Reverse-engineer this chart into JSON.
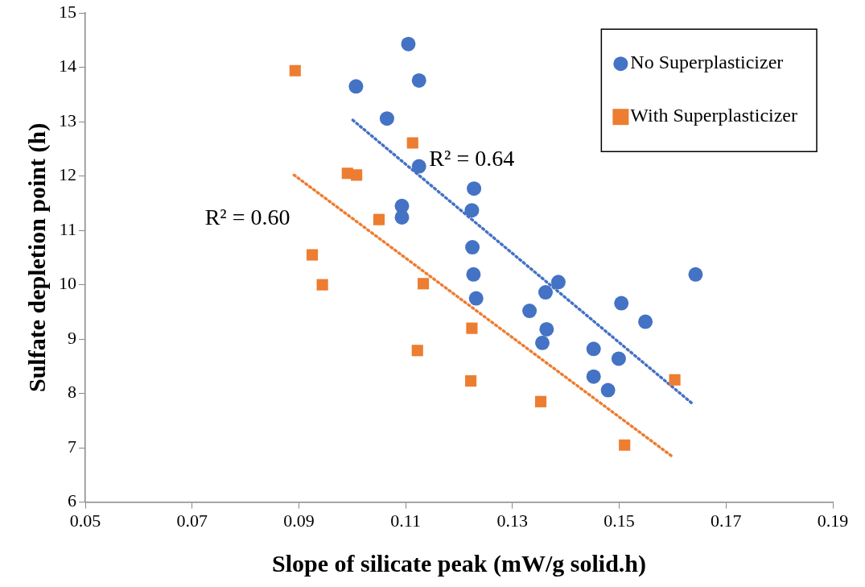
{
  "chart_data": {
    "type": "scatter",
    "xlabel": "Slope of silicate peak (mW/g solid.h)",
    "ylabel": "Sulfate depletion point (h)",
    "xlim": [
      0.05,
      0.19
    ],
    "xticks": [
      {
        "value": 0.05,
        "label": "0.05"
      },
      {
        "value": 0.07,
        "label": "0.07"
      },
      {
        "value": 0.09,
        "label": "0.09"
      },
      {
        "value": 0.11,
        "label": "0.11"
      },
      {
        "value": 0.13,
        "label": "0.13"
      },
      {
        "value": 0.15,
        "label": "0.15"
      },
      {
        "value": 0.17,
        "label": "0.17"
      },
      {
        "value": 0.19,
        "label": "0.19"
      }
    ],
    "ylim": [
      6,
      15
    ],
    "yticks": [
      6,
      7,
      8,
      9,
      10,
      11,
      12,
      13,
      14,
      15
    ],
    "grid": false,
    "legend": "top right",
    "series": [
      {
        "name": "No Superplasticizer",
        "color": "#4472c4",
        "marker": "circle",
        "x": [
          0.1007,
          0.1065,
          0.1105,
          0.1125,
          0.1125,
          0.1093,
          0.1093,
          0.1228,
          0.1224,
          0.1225,
          0.1227,
          0.1232,
          0.1332,
          0.1362,
          0.1386,
          0.1364,
          0.1356,
          0.1452,
          0.1452,
          0.1479,
          0.1499,
          0.1504,
          0.1549,
          0.1643
        ],
        "values": [
          13.65,
          13.06,
          14.43,
          13.76,
          12.18,
          11.45,
          11.24,
          11.77,
          11.37,
          10.69,
          10.19,
          9.75,
          9.52,
          9.86,
          10.05,
          9.18,
          8.93,
          8.82,
          8.31,
          8.06,
          8.64,
          9.66,
          9.32,
          10.19
        ]
      },
      {
        "name": "With Superplasticizer",
        "color": "#ed7d31",
        "marker": "square",
        "x": [
          0.0893,
          0.0991,
          0.1008,
          0.105,
          0.0925,
          0.0944,
          0.1113,
          0.1133,
          0.1224,
          0.1122,
          0.1222,
          0.1353,
          0.151,
          0.1604
        ],
        "values": [
          13.94,
          12.05,
          12.02,
          11.2,
          10.55,
          10.0,
          12.61,
          10.02,
          9.2,
          8.79,
          8.23,
          7.85,
          7.05,
          8.25
        ]
      },
      {
        "type": "line",
        "color": "#4472c4",
        "marker": "none",
        "line_style": "dotted",
        "x": [
          0.1001,
          0.1635
        ],
        "values": [
          13.03,
          7.83
        ]
      },
      {
        "type": "line",
        "color": "#ed7d31",
        "marker": "none",
        "line_style": "dotted",
        "x": [
          0.0891,
          0.1598
        ],
        "values": [
          12.02,
          6.85
        ]
      }
    ],
    "annotations": [
      "R² = 0.64",
      "R² = 0.60"
    ]
  }
}
